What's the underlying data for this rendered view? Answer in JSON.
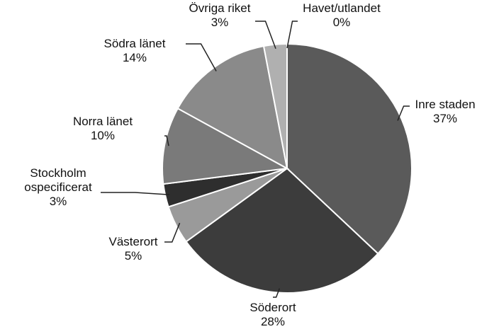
{
  "chart_data": {
    "type": "pie",
    "categories": [
      "Inre staden",
      "Söderort",
      "Västerort",
      "Stockholm ospecificerat",
      "Norra länet",
      "Södra länet",
      "Övriga riket",
      "Havet/utlandet"
    ],
    "values": [
      37,
      28,
      5,
      3,
      10,
      14,
      3,
      0
    ],
    "value_labels": [
      "37%",
      "28%",
      "5%",
      "3%",
      "10%",
      "14%",
      "3%",
      "0%"
    ],
    "colors": [
      "#5a5a5a",
      "#3c3c3c",
      "#9a9a9a",
      "#2e2e2e",
      "#7a7a7a",
      "#8a8a8a",
      "#b0b0b0",
      "#dcdcdc"
    ]
  }
}
